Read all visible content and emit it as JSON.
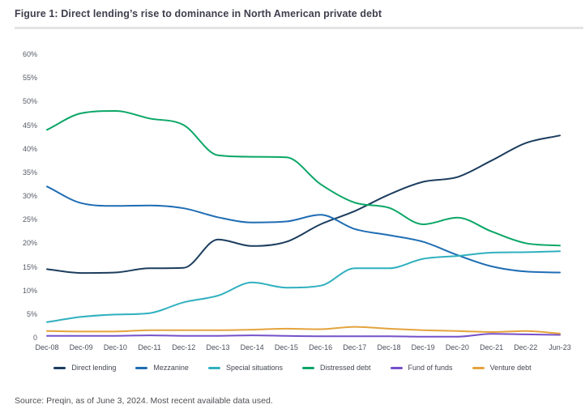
{
  "figure": {
    "title": "Figure 1: Direct lending’s rise to dominance in North American private debt",
    "source": "Source: Preqin, as of June 3, 2024. Most recent available data used."
  },
  "chart_data": {
    "type": "line",
    "title": "Figure 1: Direct lending’s rise to dominance in North American private debt",
    "xlabel": "",
    "ylabel": "",
    "ylim": [
      0,
      60
    ],
    "grid": false,
    "legend_position": "bottom",
    "y_axis": {
      "labels": [
        "0",
        "5%",
        "10%",
        "15%",
        "20%",
        "25%",
        "30%",
        "35%",
        "40%",
        "45%",
        "50%",
        "55%",
        "60%"
      ],
      "step": 5,
      "max": 60
    },
    "categories": [
      "Dec-08",
      "Dec-09",
      "Dec-10",
      "Dec-11",
      "Dec-12",
      "Dec-13",
      "Dec-14",
      "Dec-15",
      "Dec-16",
      "Dec-17",
      "Dec-18",
      "Dec-19",
      "Dec-20",
      "Dec-21",
      "Dec-22",
      "Jun-23"
    ],
    "series": [
      {
        "name": "Direct lending",
        "color": "#1c3d5e",
        "values": [
          14.5,
          13.7,
          13.8,
          14.7,
          14.8,
          20.8,
          19.4,
          20.3,
          24.0,
          26.8,
          30.3,
          33.0,
          34.0,
          37.5,
          41.2,
          42.8
        ]
      },
      {
        "name": "Mezzanine",
        "color": "#1f6db4",
        "values": [
          32.0,
          28.5,
          27.9,
          28.0,
          27.4,
          25.5,
          24.4,
          24.6,
          26.0,
          23.0,
          21.7,
          20.3,
          17.5,
          15.1,
          14.0,
          13.8
        ]
      },
      {
        "name": "Special situations",
        "color": "#2fb0bf",
        "values": [
          3.3,
          4.4,
          4.9,
          5.2,
          7.5,
          8.9,
          11.7,
          10.6,
          11.0,
          14.7,
          14.7,
          16.7,
          17.3,
          18.0,
          18.1,
          18.3
        ]
      },
      {
        "name": "Distressed debt",
        "color": "#0aa666",
        "values": [
          44.0,
          47.5,
          48.0,
          46.4,
          45.0,
          38.6,
          38.3,
          38.2,
          32.5,
          28.6,
          27.5,
          24.0,
          25.4,
          22.5,
          20.0,
          19.5
        ]
      },
      {
        "name": "Fund of funds",
        "color": "#7450c9",
        "values": [
          0.4,
          0.4,
          0.4,
          0.5,
          0.4,
          0.4,
          0.5,
          0.4,
          0.3,
          0.3,
          0.3,
          0.2,
          0.2,
          0.8,
          0.7,
          0.6
        ]
      },
      {
        "name": "Venture debt",
        "color": "#e5a33d",
        "values": [
          1.4,
          1.3,
          1.3,
          1.6,
          1.6,
          1.6,
          1.7,
          1.9,
          1.8,
          2.3,
          1.9,
          1.6,
          1.4,
          1.2,
          1.4,
          0.9
        ]
      }
    ]
  }
}
